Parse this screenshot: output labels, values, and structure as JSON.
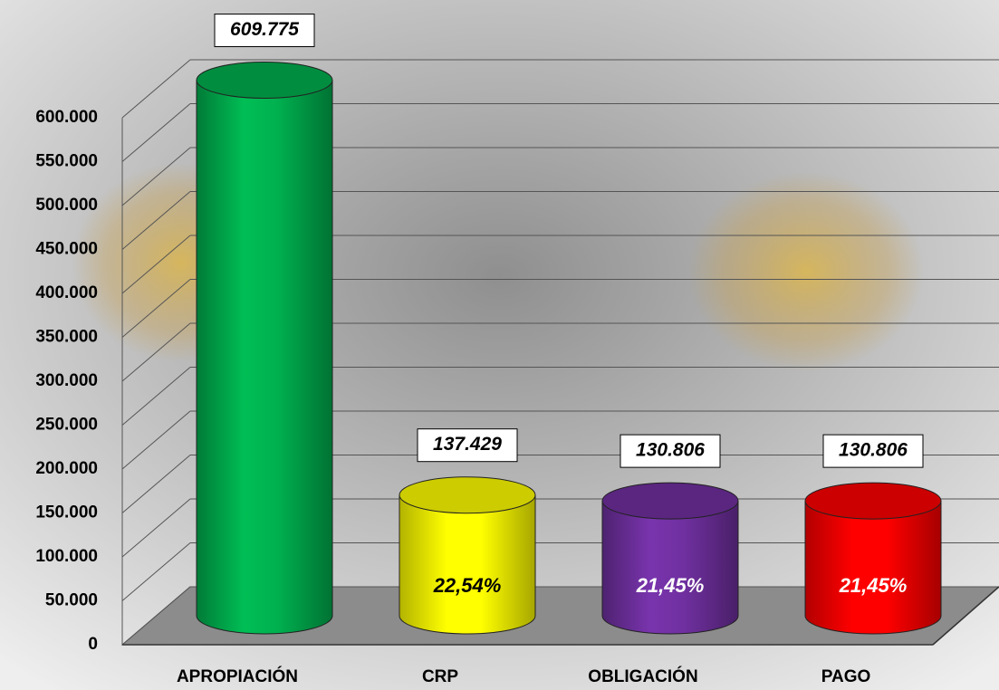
{
  "chart_data": {
    "type": "cylinder-bar",
    "categories": [
      "APROPIACIÓN",
      "CRP",
      "OBLIGACIÓN",
      "PAGO"
    ],
    "values": [
      609775,
      137429,
      130806,
      130806
    ],
    "value_labels": [
      "609.775",
      "137.429",
      "130.806",
      "130.806"
    ],
    "percent_labels": [
      null,
      "22,54%",
      "21,45%",
      "21,45%"
    ],
    "colors": [
      "#00b04f",
      "#ffff00",
      "#7030a0",
      "#ff0000"
    ],
    "ylim": [
      0,
      600000
    ],
    "yticks": [
      0,
      {
        "value": 50000,
        "label": "50.000"
      },
      {
        "value": 100000,
        "label": "100.000"
      },
      {
        "value": 150000,
        "label": "150.000"
      },
      {
        "value": 200000,
        "label": "200.000"
      },
      {
        "value": 250000,
        "label": "250.000"
      },
      {
        "value": 300000,
        "label": "300.000"
      },
      {
        "value": 350000,
        "label": "350.000"
      },
      {
        "value": 400000,
        "label": "400.000"
      },
      {
        "value": 450000,
        "label": "450.000"
      },
      {
        "value": 500000,
        "label": "500.000"
      },
      {
        "value": 550000,
        "label": "550.000"
      },
      {
        "value": 600000,
        "label": "600.000"
      }
    ],
    "grid": true
  }
}
